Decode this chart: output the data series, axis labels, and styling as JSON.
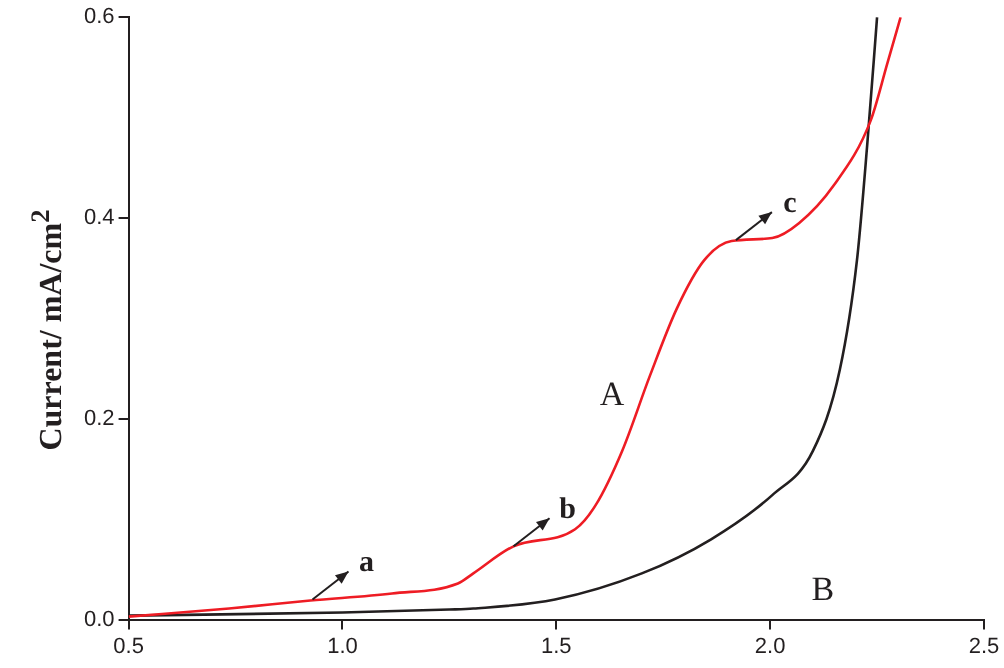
{
  "chart_data": {
    "type": "line",
    "ylabel": "Current/ mA/cm$^{2}$",
    "xlim": [
      0.5,
      2.5
    ],
    "xticks": [
      0.5,
      {
        "value": 1,
        "label": "1.0"
      },
      1.5,
      {
        "value": 2,
        "label": "2.0"
      },
      2.5
    ],
    "ylim": [
      0,
      0.6
    ],
    "yticks": [
      {
        "value": 0,
        "label": "0.0"
      },
      0.2,
      0.4,
      0.6
    ],
    "grid": false,
    "legend": false,
    "marker": "none",
    "line_style": "solid",
    "series": [
      {
        "name": "A",
        "color": "#ee1c24",
        "x": [
          0.5,
          0.735,
          0.925,
          1.116,
          1.27,
          1.306,
          1.4,
          1.544,
          1.592,
          1.654,
          1.719,
          1.782,
          1.846,
          1.91,
          2.005,
          2.068,
          2.148,
          2.235,
          2.274,
          2.305
        ],
        "values": [
          0.003,
          0.011,
          0.019,
          0.026,
          0.036,
          0.046,
          0.073,
          0.09,
          0.114,
          0.168,
          0.243,
          0.31,
          0.358,
          0.377,
          0.38,
          0.395,
          0.432,
          0.497,
          0.554,
          0.6
        ]
      },
      {
        "name": "B",
        "color": "#231f20",
        "x": [
          0.5,
          1.0,
          1.25,
          1.306,
          1.497,
          1.7,
          1.862,
          2.005,
          2.1,
          2.163,
          2.203,
          2.227,
          2.25
        ],
        "values": [
          0.004,
          0.007,
          0.01,
          0.011,
          0.02,
          0.046,
          0.08,
          0.124,
          0.168,
          0.249,
          0.358,
          0.473,
          0.6
        ]
      }
    ],
    "annotations": [
      {
        "text": "a",
        "x": 0.93,
        "y": 0.02
      },
      {
        "text": "b",
        "x": 1.4,
        "y": 0.073
      },
      {
        "text": "c",
        "x": 1.92,
        "y": 0.378
      }
    ]
  }
}
